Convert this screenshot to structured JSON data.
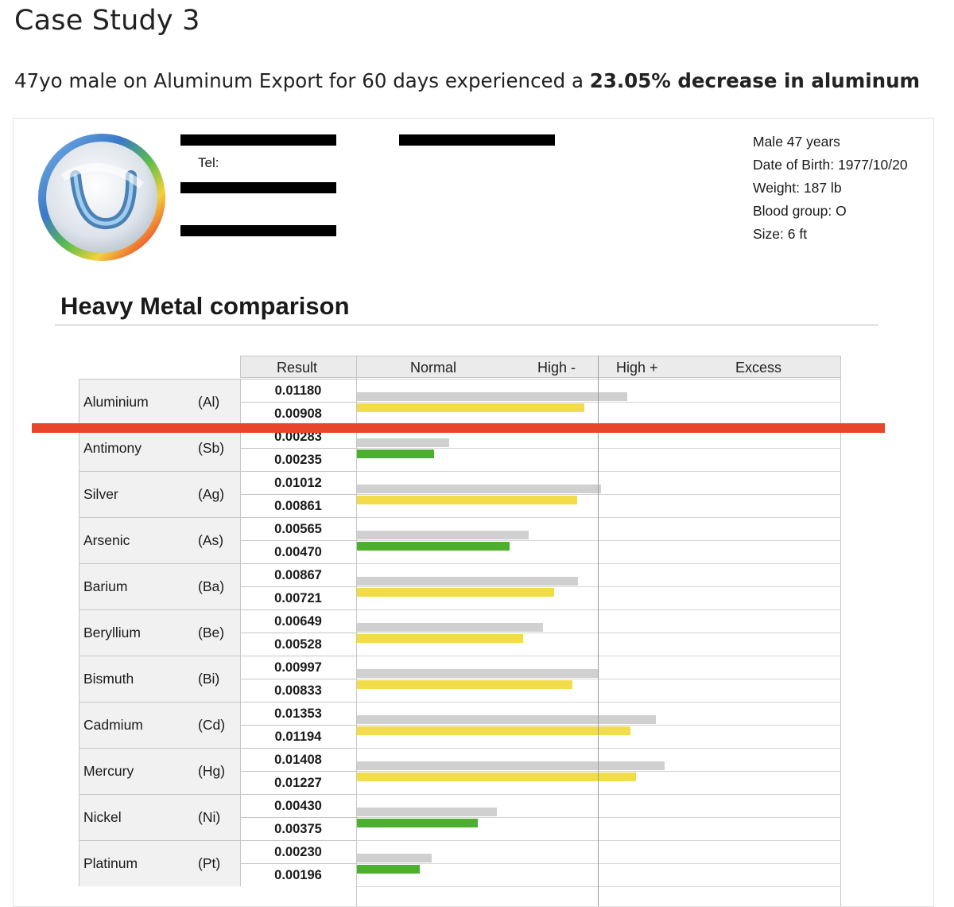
{
  "heading": {
    "title": "Case Study 3",
    "summary_prefix": "47yo male on Aluminum Export for 60 days experienced a ",
    "summary_bold": "23.05% decrease in aluminum"
  },
  "report": {
    "tel_label": "Tel:",
    "patient": {
      "line1": "Male 47 years",
      "line2": "Date of Birth: 1977/10/20",
      "line3": "Weight: 187 lb",
      "line4": "Blood group: O",
      "line5": "Size: 6 ft"
    },
    "section_title": "Heavy Metal comparison",
    "headers": {
      "result": "Result",
      "normal": "Normal",
      "high_minus": "High -",
      "high_plus": "High +",
      "excess": "Excess"
    },
    "colors": {
      "before_bar": "#d0d0d0",
      "yellow_bar": "#f2dc4a",
      "green_bar": "#4caf2e",
      "marker_line": "#e8452a"
    }
  },
  "chart_data": {
    "type": "bar",
    "title": "Heavy Metal comparison",
    "xlabel": "",
    "ylabel": "",
    "zones": [
      "Normal",
      "High -",
      "High +",
      "Excess"
    ],
    "rows": [
      {
        "name": "Aluminium",
        "symbol": "(Al)",
        "before": "0.01180",
        "after": "0.00908",
        "level_before": 0.56,
        "level_after": 0.47,
        "after_color": "yellow"
      },
      {
        "name": "Antimony",
        "symbol": "(Sb)",
        "before": "0.00283",
        "after": "0.00235",
        "level_before": 0.19,
        "level_after": 0.16,
        "after_color": "green"
      },
      {
        "name": "Silver",
        "symbol": "(Ag)",
        "before": "0.01012",
        "after": "0.00861",
        "level_before": 0.505,
        "level_after": 0.455,
        "after_color": "yellow"
      },
      {
        "name": "Arsenic",
        "symbol": "(As)",
        "before": "0.00565",
        "after": "0.00470",
        "level_before": 0.355,
        "level_after": 0.315,
        "after_color": "green"
      },
      {
        "name": "Barium",
        "symbol": "(Ba)",
        "before": "0.00867",
        "after": "0.00721",
        "level_before": 0.458,
        "level_after": 0.408,
        "after_color": "yellow"
      },
      {
        "name": "Beryllium",
        "symbol": "(Be)",
        "before": "0.00649",
        "after": "0.00528",
        "level_before": 0.385,
        "level_after": 0.343,
        "after_color": "yellow"
      },
      {
        "name": "Bismuth",
        "symbol": "(Bi)",
        "before": "0.00997",
        "after": "0.00833",
        "level_before": 0.5,
        "level_after": 0.445,
        "after_color": "yellow"
      },
      {
        "name": "Cadmium",
        "symbol": "(Cd)",
        "before": "0.01353",
        "after": "0.01194",
        "level_before": 0.618,
        "level_after": 0.565,
        "after_color": "yellow"
      },
      {
        "name": "Mercury",
        "symbol": "(Hg)",
        "before": "0.01408",
        "after": "0.01227",
        "level_before": 0.636,
        "level_after": 0.577,
        "after_color": "yellow"
      },
      {
        "name": "Nickel",
        "symbol": "(Ni)",
        "before": "0.00430",
        "after": "0.00375",
        "level_before": 0.29,
        "level_after": 0.25,
        "after_color": "green"
      },
      {
        "name": "Platinum",
        "symbol": "(Pt)",
        "before": "0.00230",
        "after": "0.00196",
        "level_before": 0.155,
        "level_after": 0.13,
        "after_color": "green"
      }
    ]
  }
}
